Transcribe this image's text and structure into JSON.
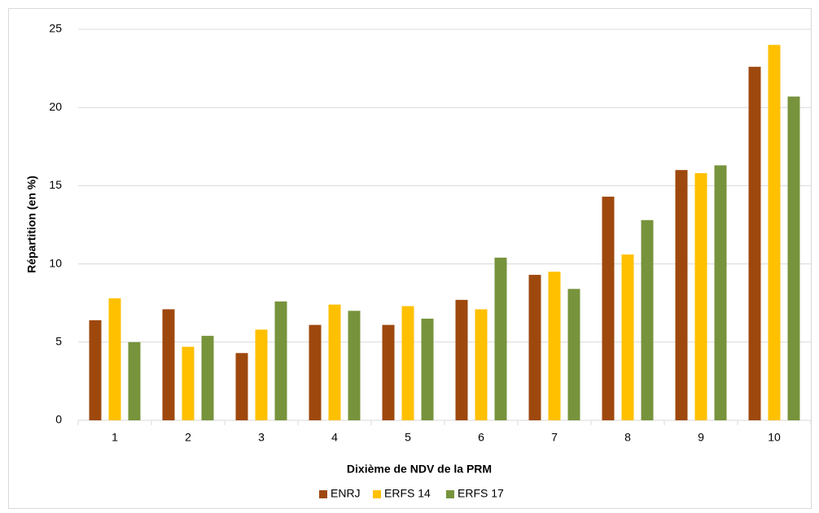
{
  "chart_data": {
    "type": "bar",
    "x_label": "Dixième de NDV de la PRM",
    "y_label": "Répartition (en %)",
    "categories": [
      "1",
      "2",
      "3",
      "4",
      "5",
      "6",
      "7",
      "8",
      "9",
      "10"
    ],
    "series": [
      {
        "name": "ENRJ",
        "color": "#9e480e",
        "values": [
          6.4,
          7.1,
          4.3,
          6.1,
          6.1,
          7.7,
          9.3,
          14.3,
          16.0,
          22.6
        ]
      },
      {
        "name": "ERFS 14",
        "color": "#ffc000",
        "values": [
          7.8,
          4.7,
          5.8,
          7.4,
          7.3,
          7.1,
          9.5,
          10.6,
          15.8,
          24.0
        ]
      },
      {
        "name": "ERFS 17",
        "color": "#77933c",
        "values": [
          5.0,
          5.4,
          7.6,
          7.0,
          6.5,
          10.4,
          8.4,
          12.8,
          16.3,
          20.7
        ]
      }
    ],
    "ylim": [
      0,
      25
    ],
    "yticks": [
      0,
      5,
      10,
      15,
      20,
      25
    ],
    "grid": true,
    "legend": "bottom"
  }
}
